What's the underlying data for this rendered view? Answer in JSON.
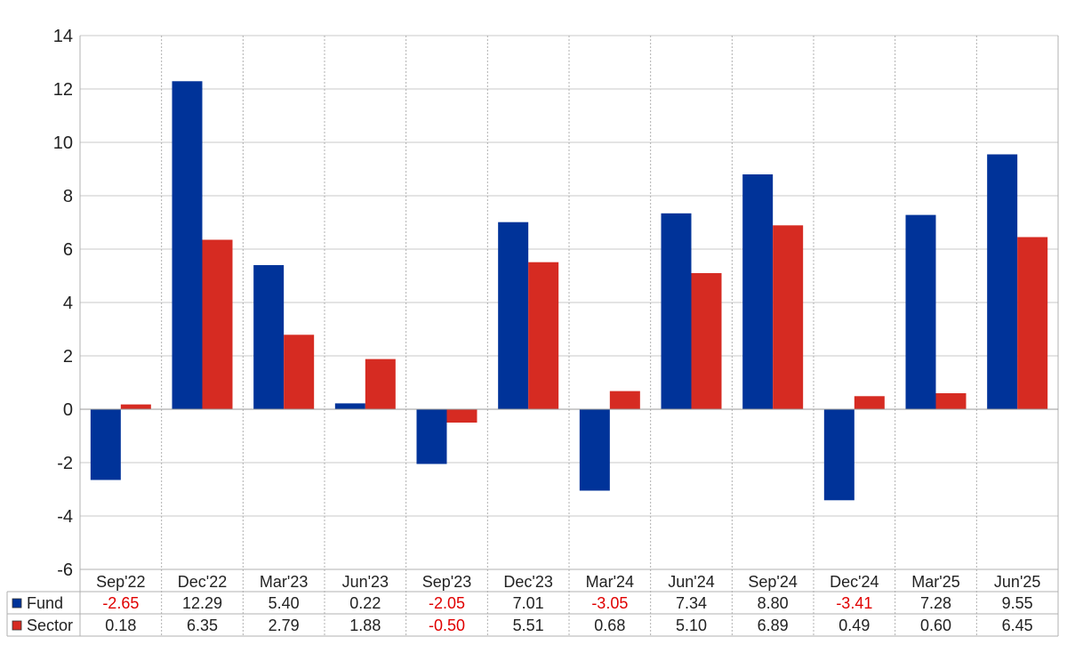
{
  "chart_data": {
    "type": "bar",
    "title": "",
    "xlabel": "",
    "ylabel": "",
    "ylim": [
      -6,
      14
    ],
    "yticks": [
      14,
      12,
      10,
      8,
      6,
      4,
      2,
      0,
      -2,
      -4,
      -6
    ],
    "grid": true,
    "legend": "table-below",
    "categories": [
      "Sep'22",
      "Dec'22",
      "Mar'23",
      "Jun'23",
      "Sep'23",
      "Dec'23",
      "Mar'24",
      "Jun'24",
      "Sep'24",
      "Dec'24",
      "Mar'25",
      "Jun'25"
    ],
    "series": [
      {
        "name": "Fund",
        "color": "#003399",
        "values": [
          -2.65,
          12.29,
          5.4,
          0.22,
          -2.05,
          7.01,
          -3.05,
          7.34,
          8.8,
          -3.41,
          7.28,
          9.55
        ],
        "labels": [
          "-2.65",
          "12.29",
          "5.40",
          "0.22",
          "-2.05",
          "7.01",
          "-3.05",
          "7.34",
          "8.80",
          "-3.41",
          "7.28",
          "9.55"
        ]
      },
      {
        "name": "Sector",
        "color": "#d62b22",
        "values": [
          0.18,
          6.35,
          2.79,
          1.88,
          -0.5,
          5.51,
          0.68,
          5.1,
          6.89,
          0.49,
          0.6,
          6.45
        ],
        "labels": [
          "0.18",
          "6.35",
          "2.79",
          "1.88",
          "-0.50",
          "5.51",
          "0.68",
          "5.10",
          "6.89",
          "0.49",
          "0.60",
          "6.45"
        ]
      }
    ],
    "negative_value_color": "#e00000"
  }
}
